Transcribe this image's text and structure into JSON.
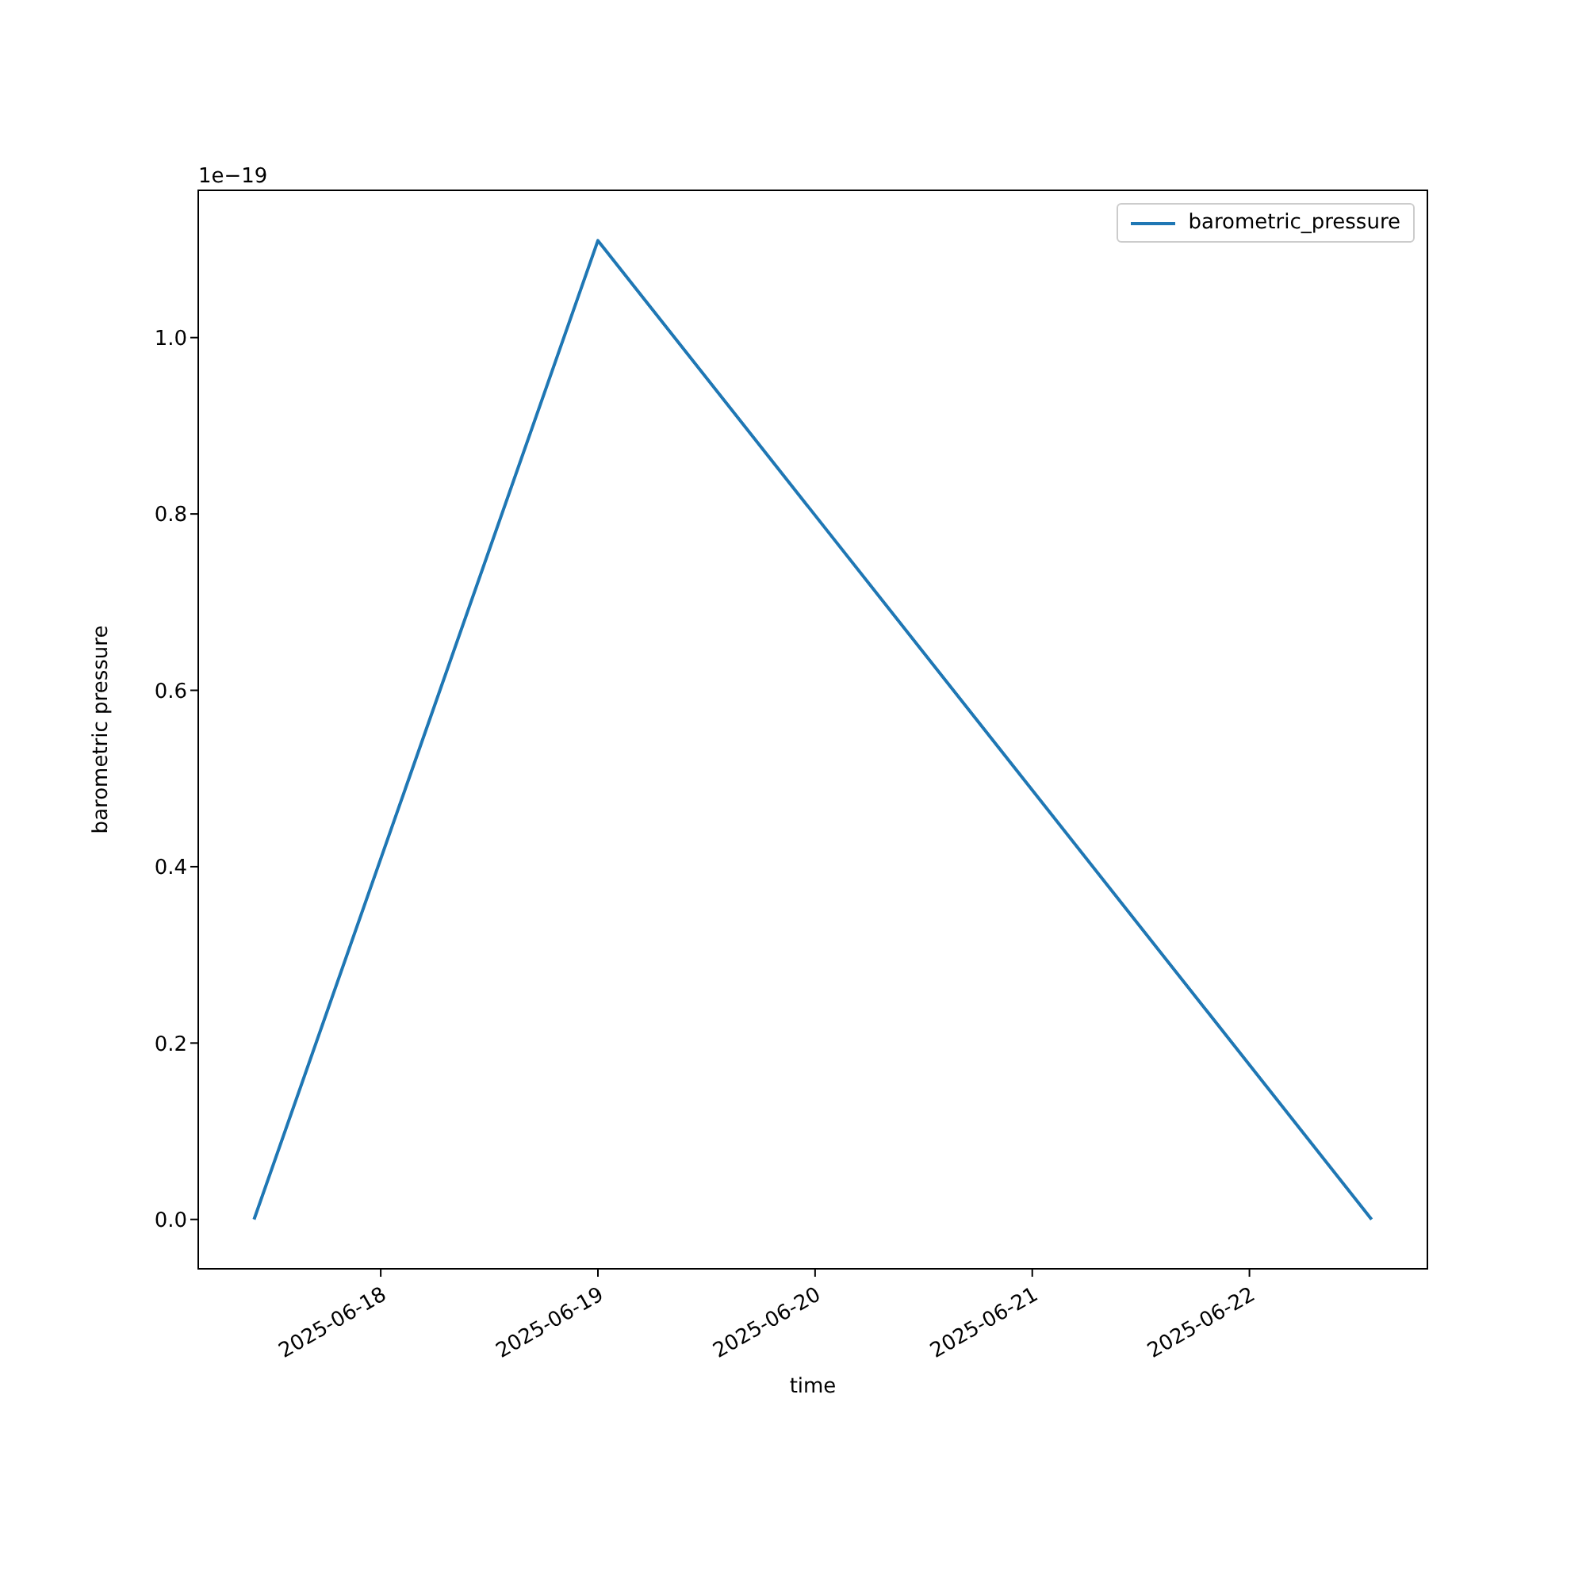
{
  "chart_data": {
    "type": "line",
    "xlabel": "time",
    "ylabel": "barometric pressure",
    "x": [
      "2025-06-17T10:00",
      "2025-06-19T00:00",
      "2025-06-22T13:30"
    ],
    "series": [
      {
        "name": "barometric_pressure",
        "color": "#1f77b4",
        "values": [
          0,
          1.11,
          0
        ]
      }
    ],
    "xlim": [
      "2025-06-17T03:50",
      "2025-06-22T19:40"
    ],
    "xticks": [
      "2025-06-18",
      "2025-06-19",
      "2025-06-20",
      "2025-06-21",
      "2025-06-22"
    ],
    "ylim": [
      -0.056,
      1.167
    ],
    "yticks": [
      {
        "value": 0,
        "label": "0.0"
      },
      {
        "value": 0.2,
        "label": "0.2"
      },
      {
        "value": 0.4,
        "label": "0.4"
      },
      {
        "value": 0.6,
        "label": "0.6"
      },
      {
        "value": 0.8,
        "label": "0.8"
      },
      {
        "value": 1.0,
        "label": "1.0"
      }
    ],
    "annotations": [
      "1e−19"
    ],
    "legend": "top right",
    "grid": false,
    "marker": "none",
    "line_style": "solid"
  }
}
